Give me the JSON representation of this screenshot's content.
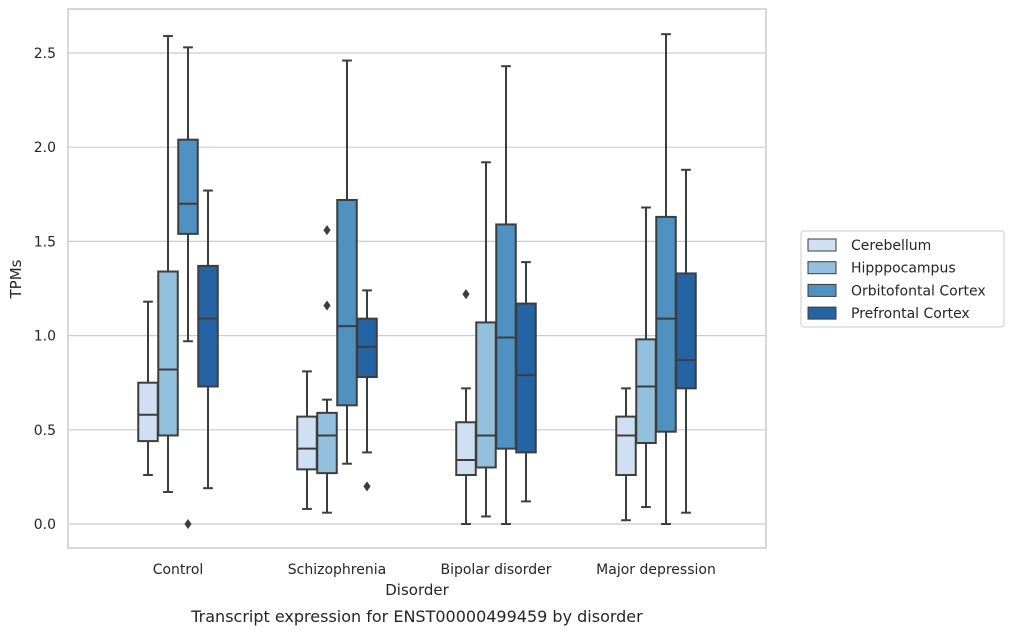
{
  "chart_data": {
    "type": "box",
    "title": "",
    "caption": "Transcript expression for ENST00000499459 by disorder",
    "xlabel": "Disorder",
    "ylabel": "TPMs",
    "ylim": [
      -0.12,
      2.75
    ],
    "yticks": [
      0.0,
      0.5,
      1.0,
      1.5,
      2.0,
      2.5
    ],
    "ytick_labels": [
      "0.0",
      "0.5",
      "1.0",
      "1.5",
      "2.0",
      "2.5"
    ],
    "grid": "horizontal",
    "legend_position": "right",
    "categories": [
      "Control",
      "Schizophrenia",
      "Bipolar disorder",
      "Major depression"
    ],
    "series": [
      {
        "name": "Cerebellum",
        "color": "#cfe0f2",
        "boxes": [
          {
            "whisker_low": 0.26,
            "q1": 0.44,
            "median": 0.58,
            "q3": 0.75,
            "whisker_high": 1.18,
            "outliers": []
          },
          {
            "whisker_low": 0.08,
            "q1": 0.29,
            "median": 0.4,
            "q3": 0.57,
            "whisker_high": 0.81,
            "outliers": []
          },
          {
            "whisker_low": 0.0,
            "q1": 0.26,
            "median": 0.34,
            "q3": 0.54,
            "whisker_high": 0.72,
            "outliers": [
              1.22
            ]
          },
          {
            "whisker_low": 0.02,
            "q1": 0.26,
            "median": 0.47,
            "q3": 0.57,
            "whisker_high": 0.72,
            "outliers": []
          }
        ]
      },
      {
        "name": "Hipppocampus",
        "color": "#93c0dc",
        "boxes": [
          {
            "whisker_low": 0.17,
            "q1": 0.47,
            "median": 0.82,
            "q3": 1.34,
            "whisker_high": 2.59,
            "outliers": []
          },
          {
            "whisker_low": 0.06,
            "q1": 0.27,
            "median": 0.47,
            "q3": 0.59,
            "whisker_high": 0.66,
            "outliers": [
              1.16,
              1.56
            ]
          },
          {
            "whisker_low": 0.04,
            "q1": 0.3,
            "median": 0.47,
            "q3": 1.07,
            "whisker_high": 1.92,
            "outliers": []
          },
          {
            "whisker_low": 0.09,
            "q1": 0.43,
            "median": 0.73,
            "q3": 0.98,
            "whisker_high": 1.68,
            "outliers": []
          }
        ]
      },
      {
        "name": "Orbitofontal Cortex",
        "color": "#4f91c1",
        "boxes": [
          {
            "whisker_low": 0.97,
            "q1": 1.54,
            "median": 1.7,
            "q3": 2.04,
            "whisker_high": 2.53,
            "outliers": [
              0.0
            ]
          },
          {
            "whisker_low": 0.32,
            "q1": 0.63,
            "median": 1.05,
            "q3": 1.72,
            "whisker_high": 2.46,
            "outliers": []
          },
          {
            "whisker_low": 0.0,
            "q1": 0.4,
            "median": 0.99,
            "q3": 1.59,
            "whisker_high": 2.43,
            "outliers": []
          },
          {
            "whisker_low": 0.0,
            "q1": 0.49,
            "median": 1.09,
            "q3": 1.63,
            "whisker_high": 2.6,
            "outliers": []
          }
        ]
      },
      {
        "name": "Prefrontal Cortex",
        "color": "#2464a5",
        "boxes": [
          {
            "whisker_low": 0.19,
            "q1": 0.73,
            "median": 1.09,
            "q3": 1.37,
            "whisker_high": 1.77,
            "outliers": []
          },
          {
            "whisker_low": 0.38,
            "q1": 0.78,
            "median": 0.94,
            "q3": 1.09,
            "whisker_high": 1.24,
            "outliers": [
              0.2
            ]
          },
          {
            "whisker_low": 0.12,
            "q1": 0.38,
            "median": 0.79,
            "q3": 1.17,
            "whisker_high": 1.39,
            "outliers": []
          },
          {
            "whisker_low": 0.06,
            "q1": 0.72,
            "median": 0.87,
            "q3": 1.33,
            "whisker_high": 1.88,
            "outliers": []
          }
        ]
      }
    ]
  }
}
